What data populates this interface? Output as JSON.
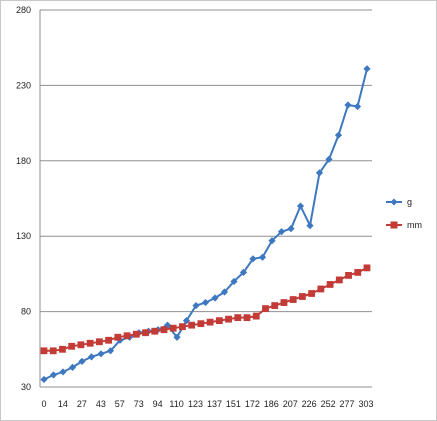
{
  "chart_data": {
    "type": "line",
    "title": "",
    "xlabel": "",
    "ylabel": "",
    "ylim": [
      30,
      280
    ],
    "yticks": [
      30,
      80,
      130,
      180,
      230,
      280
    ],
    "grid": true,
    "legend_position": "right",
    "x_tick_labels": [
      "0",
      "14",
      "27",
      "43",
      "57",
      "73",
      "94",
      "110",
      "123",
      "137",
      "151",
      "172",
      "186",
      "207",
      "226",
      "252",
      "277",
      "303"
    ],
    "series": [
      {
        "name": "g",
        "color": "#3d78c0",
        "marker": "diamond",
        "values": [
          35,
          38,
          40,
          43,
          47,
          50,
          52,
          54,
          61,
          63,
          66,
          67,
          68,
          71,
          63,
          74,
          84,
          86,
          89,
          93,
          100,
          106,
          115,
          116,
          127,
          133,
          135,
          150,
          137,
          172,
          181,
          197,
          217,
          216,
          241
        ]
      },
      {
        "name": "mm",
        "color": "#c33b37",
        "marker": "square",
        "values": [
          54,
          54,
          55,
          57,
          58,
          59,
          60,
          61,
          63,
          64,
          65,
          66,
          67,
          68,
          69,
          70,
          71,
          72,
          73,
          74,
          75,
          76,
          76,
          77,
          82,
          84,
          86,
          88,
          90,
          92,
          95,
          98,
          101,
          104,
          106,
          109
        ]
      }
    ]
  }
}
